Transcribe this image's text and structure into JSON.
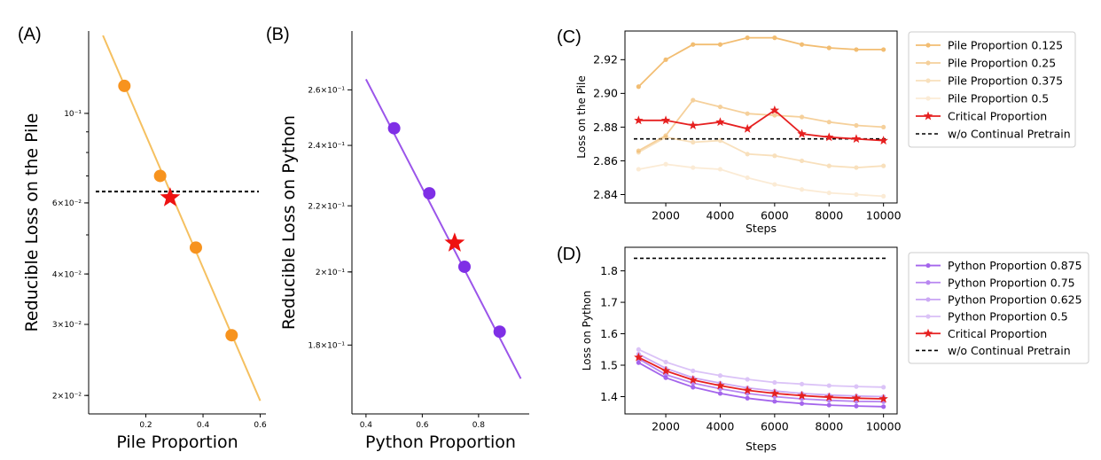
{
  "chart_data": [
    {
      "panel": "(A)",
      "type": "scatter",
      "xlabel": "Pile Proportion",
      "ylabel": "Reducible Loss on the Pile",
      "yscale": "log",
      "xlim": [
        0.0,
        0.62
      ],
      "ylim": [
        0.018,
        0.16
      ],
      "xticks": [
        0.2,
        0.4,
        0.6
      ],
      "xtick_labels": [
        "0.2",
        "0.4",
        "0.6"
      ],
      "yticks": [
        0.1,
        0.06,
        0.04,
        0.03,
        0.02
      ],
      "ytick_labels": [
        "10⁻¹",
        "6×10⁻²",
        "4×10⁻²",
        "3×10⁻²",
        "2×10⁻²"
      ],
      "points": [
        {
          "x": 0.125,
          "y": 0.117
        },
        {
          "x": 0.25,
          "y": 0.07
        },
        {
          "x": 0.375,
          "y": 0.0465
        },
        {
          "x": 0.5,
          "y": 0.0282
        }
      ],
      "fit_line": [
        {
          "x": 0.05,
          "y": 0.156
        },
        {
          "x": 0.6,
          "y": 0.0194
        }
      ],
      "critical": {
        "x": 0.285,
        "y": 0.0618
      },
      "hline": 0.064,
      "colors": {
        "point": "#f7931e",
        "line": "#f5c060",
        "star": "#ee1111"
      }
    },
    {
      "panel": "(B)",
      "type": "scatter",
      "xlabel": "Python Proportion",
      "ylabel": "Reducible Loss on Python",
      "yscale": "log",
      "xlim": [
        0.35,
        0.98
      ],
      "ylim": [
        0.163,
        0.283
      ],
      "xticks": [
        0.4,
        0.6,
        0.8
      ],
      "xtick_labels": [
        "0.4",
        "0.6",
        "0.8"
      ],
      "yticks": [
        0.26,
        0.24,
        0.22,
        0.2,
        0.18
      ],
      "ytick_labels": [
        "2.6×10⁻¹",
        "2.4×10⁻¹",
        "2.2×10⁻¹",
        "2×10⁻¹",
        "1.8×10⁻¹"
      ],
      "points": [
        {
          "x": 0.5,
          "y": 0.246
        },
        {
          "x": 0.625,
          "y": 0.224
        },
        {
          "x": 0.75,
          "y": 0.2015
        },
        {
          "x": 0.875,
          "y": 0.1835
        }
      ],
      "fit_line": [
        {
          "x": 0.4,
          "y": 0.264
        },
        {
          "x": 0.95,
          "y": 0.1715
        }
      ],
      "critical": {
        "x": 0.715,
        "y": 0.2085
      },
      "colors": {
        "point": "#7f2fe6",
        "line": "#9b55ea",
        "star": "#ee1111"
      }
    },
    {
      "panel": "(C)",
      "type": "line",
      "xlabel": "Steps",
      "ylabel": "Loss on the Pile",
      "xlim": [
        500,
        10500
      ],
      "ylim": [
        2.835,
        2.937
      ],
      "xticks": [
        2000,
        4000,
        6000,
        8000,
        10000
      ],
      "yticks": [
        2.84,
        2.86,
        2.88,
        2.9,
        2.92
      ],
      "ytick_labels": [
        "2.84",
        "2.86",
        "2.88",
        "2.90",
        "2.92"
      ],
      "x": [
        1000,
        2000,
        3000,
        4000,
        5000,
        6000,
        7000,
        8000,
        9000,
        10000
      ],
      "series": [
        {
          "name": "Pile Proportion 0.125",
          "values": [
            2.904,
            2.92,
            2.929,
            2.929,
            2.933,
            2.933,
            2.929,
            2.927,
            2.926,
            2.926
          ],
          "color": "#f0b25a",
          "opacity": 0.85
        },
        {
          "name": "Pile Proportion 0.25",
          "values": [
            2.866,
            2.875,
            2.896,
            2.892,
            2.888,
            2.887,
            2.886,
            2.883,
            2.881,
            2.88
          ],
          "color": "#f0b25a",
          "opacity": 0.6
        },
        {
          "name": "Pile Proportion 0.375",
          "values": [
            2.865,
            2.874,
            2.871,
            2.872,
            2.864,
            2.863,
            2.86,
            2.857,
            2.856,
            2.857
          ],
          "color": "#f0b25a",
          "opacity": 0.4
        },
        {
          "name": "Pile Proportion 0.5",
          "values": [
            2.855,
            2.858,
            2.856,
            2.855,
            2.85,
            2.846,
            2.843,
            2.841,
            2.84,
            2.839
          ],
          "color": "#f0b25a",
          "opacity": 0.25
        },
        {
          "name": "Critical Proportion",
          "values": [
            2.884,
            2.884,
            2.881,
            2.883,
            2.879,
            2.89,
            2.876,
            2.874,
            2.873,
            2.872
          ],
          "color": "#e62020",
          "marker": "star"
        }
      ],
      "hline": {
        "name": "w/o Continual Pretrain",
        "value": 2.873
      }
    },
    {
      "panel": "(D)",
      "type": "line",
      "xlabel": "Steps",
      "ylabel": "Loss on Python",
      "xlim": [
        500,
        10500
      ],
      "ylim": [
        1.345,
        1.875
      ],
      "xticks": [
        2000,
        4000,
        6000,
        8000,
        10000
      ],
      "yticks": [
        1.4,
        1.5,
        1.6,
        1.7,
        1.8
      ],
      "ytick_labels": [
        "1.4",
        "1.5",
        "1.6",
        "1.7",
        "1.8"
      ],
      "x": [
        1000,
        2000,
        3000,
        4000,
        5000,
        6000,
        7000,
        8000,
        9000,
        10000
      ],
      "series": [
        {
          "name": "Python Proportion 0.875",
          "values": [
            1.508,
            1.46,
            1.43,
            1.41,
            1.395,
            1.385,
            1.378,
            1.373,
            1.37,
            1.368
          ],
          "color": "#9b55ea",
          "opacity": 0.9
        },
        {
          "name": "Python Proportion 0.75",
          "values": [
            1.52,
            1.47,
            1.443,
            1.425,
            1.41,
            1.4,
            1.393,
            1.388,
            1.385,
            1.384
          ],
          "color": "#9b55ea",
          "opacity": 0.7
        },
        {
          "name": "Python Proportion 0.625",
          "values": [
            1.535,
            1.49,
            1.46,
            1.443,
            1.428,
            1.418,
            1.41,
            1.405,
            1.402,
            1.4
          ],
          "color": "#9b55ea",
          "opacity": 0.5
        },
        {
          "name": "Python Proportion 0.5",
          "values": [
            1.55,
            1.51,
            1.482,
            1.467,
            1.455,
            1.445,
            1.44,
            1.435,
            1.432,
            1.43
          ],
          "color": "#9b55ea",
          "opacity": 0.35
        },
        {
          "name": "Critical Proportion",
          "values": [
            1.525,
            1.482,
            1.453,
            1.435,
            1.42,
            1.41,
            1.403,
            1.398,
            1.395,
            1.393
          ],
          "color": "#e62020",
          "marker": "star"
        }
      ],
      "hline": {
        "name": "w/o Continual Pretrain",
        "value": 1.84
      }
    }
  ]
}
